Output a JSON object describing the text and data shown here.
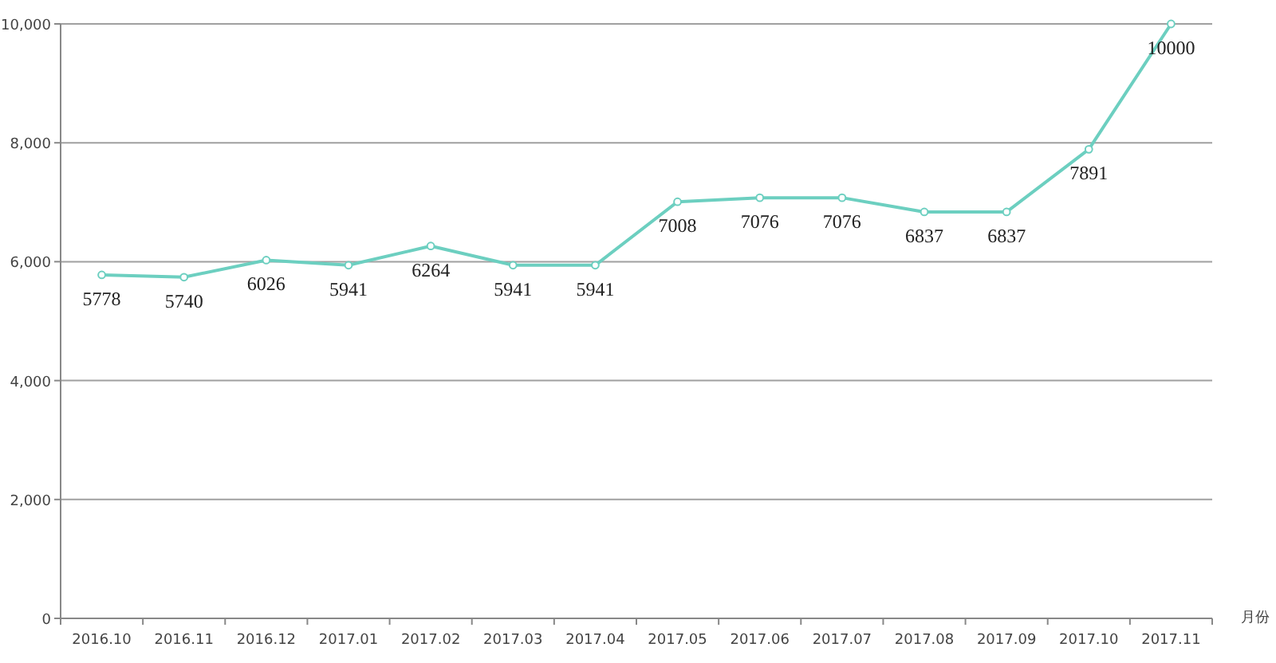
{
  "chart_data": {
    "type": "line",
    "xlabel": "月份",
    "categories": [
      "2016.10",
      "2016.11",
      "2016.12",
      "2017.01",
      "2017.02",
      "2017.03",
      "2017.04",
      "2017.05",
      "2017.06",
      "2017.07",
      "2017.08",
      "2017.09",
      "2017.10",
      "2017.11"
    ],
    "series": [
      {
        "color": "#6ccfc0",
        "values": [
          5778,
          5740,
          6026,
          5941,
          6264,
          5941,
          5941,
          7008,
          7076,
          7076,
          6837,
          6837,
          7891,
          10000
        ]
      }
    ],
    "ylim": [
      0,
      10000
    ],
    "yticks": [
      0,
      {
        "value": 2000,
        "label": "2,000"
      },
      {
        "value": 4000,
        "label": "4,000"
      },
      {
        "value": 6000,
        "label": "6,000"
      },
      {
        "value": 8000,
        "label": "8,000"
      },
      {
        "value": 10000,
        "label": "10,000"
      }
    ],
    "grid": "y",
    "marker": "circle",
    "line_style": "solid",
    "data_labels": true
  }
}
